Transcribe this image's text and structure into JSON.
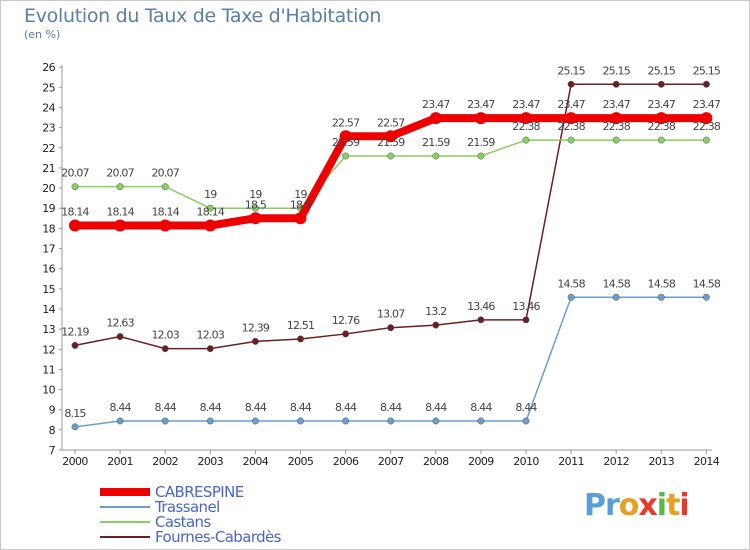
{
  "header": {
    "title": "Evolution du Taux de Taxe d'Habitation",
    "subtitle": "(en %)"
  },
  "logo": {
    "text": "Proxiti",
    "colors": [
      "#5a9ed8",
      "#e8a020",
      "#5ab84a",
      "#e83a2a"
    ]
  },
  "colors": {
    "axis": "#999999",
    "frame": "#c8c8c8",
    "text_accent": "#4a66c8"
  },
  "chart_data": {
    "type": "line",
    "title": "Evolution du Taux de Taxe d'Habitation",
    "ylabel": "(en %)",
    "x": [
      "2000",
      "2001",
      "2002",
      "2003",
      "2004",
      "2005",
      "2006",
      "2007",
      "2008",
      "2009",
      "2010",
      "2011",
      "2012",
      "2013",
      "2014"
    ],
    "ylim": [
      7,
      26
    ],
    "yticks": [
      7,
      8,
      9,
      10,
      11,
      12,
      13,
      14,
      15,
      16,
      17,
      18,
      19,
      20,
      21,
      22,
      23,
      24,
      25,
      26
    ],
    "grid": false,
    "legend": "bottom-left",
    "series": [
      {
        "name": "CABRESPINE",
        "color": "#ee0000",
        "width": 8,
        "values": [
          18.14,
          18.14,
          18.14,
          18.14,
          18.5,
          18.5,
          22.57,
          22.57,
          23.47,
          23.47,
          23.47,
          23.47,
          23.47,
          23.47,
          23.47
        ],
        "labels": [
          "18.14",
          "18.14",
          "18.14",
          "18.14",
          "18.5",
          "18.5",
          "22.57",
          "22.57",
          "23.47",
          "23.47",
          "23.47",
          "23.47",
          "23.47",
          "23.47",
          "23.47"
        ]
      },
      {
        "name": "Trassanel",
        "color": "#6a9ed0",
        "width": 1.5,
        "values": [
          8.15,
          8.44,
          8.44,
          8.44,
          8.44,
          8.44,
          8.44,
          8.44,
          8.44,
          8.44,
          8.44,
          14.58,
          14.58,
          14.58,
          14.58
        ],
        "labels": [
          "8.15",
          "8.44",
          "8.44",
          "8.44",
          "8.44",
          "8.44",
          "8.44",
          "8.44",
          "8.44",
          "8.44",
          "8.44",
          "14.58",
          "14.58",
          "14.58",
          "14.58"
        ]
      },
      {
        "name": "Castans",
        "color": "#88d060",
        "width": 1.5,
        "values": [
          20.07,
          20.07,
          20.07,
          19,
          19,
          19,
          21.59,
          21.59,
          21.59,
          21.59,
          22.38,
          22.38,
          22.38,
          22.38,
          22.38
        ],
        "labels": [
          "20.07",
          "20.07",
          "20.07",
          "19",
          "19",
          "19",
          "21.59",
          "21.59",
          "21.59",
          "21.59",
          "22.38",
          "22.38",
          "22.38",
          "22.38",
          "22.38"
        ]
      },
      {
        "name": "Fournes-Cabardès",
        "color": "#6a2020",
        "width": 1.5,
        "values": [
          12.19,
          12.63,
          12.03,
          12.03,
          12.39,
          12.51,
          12.76,
          13.07,
          13.2,
          13.46,
          13.46,
          25.15,
          25.15,
          25.15,
          25.15
        ],
        "labels": [
          "12.19",
          "12.63",
          "12.03",
          "12.03",
          "12.39",
          "12.51",
          "12.76",
          "13.07",
          "13.2",
          "13.46",
          "13.46",
          "25.15",
          "25.15",
          "25.15",
          "25.15"
        ]
      }
    ]
  }
}
